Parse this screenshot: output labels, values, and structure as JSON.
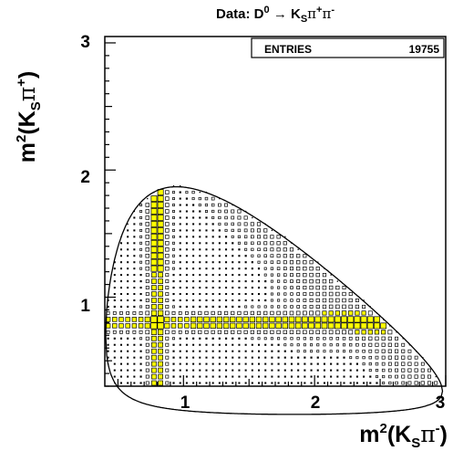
{
  "chart_data": {
    "type": "heatmap",
    "title": "Data: D⁰ → Kₛπ⁺π⁻",
    "title_parts": {
      "prefix": "Data: D",
      "d_sup": "0",
      "arrow": "→",
      "k": "K",
      "k_sub": "S",
      "pi1": "π",
      "pi1_sup": "+",
      "pi2": "π",
      "pi2_sup": "-"
    },
    "xlabel": {
      "m": "m",
      "sup": "2",
      "open": "(K",
      "sub": "S",
      "pi": "π",
      "pi_sup": "-",
      "close": ")"
    },
    "ylabel": {
      "m": "m",
      "sup": "2",
      "open": "(K",
      "sub": "S",
      "pi": "π",
      "pi_sup": "+",
      "close": ")"
    },
    "xlim": [
      0.4,
      3.0
    ],
    "ylim": [
      0.3,
      3.05
    ],
    "xticks": [
      1,
      2,
      3
    ],
    "yticks": [
      1,
      2,
      3
    ],
    "xtick_labels": [
      "1",
      "2",
      "3"
    ],
    "ytick_labels": [
      "1",
      "2",
      "3"
    ],
    "stats_box": {
      "label": "ENTRIES",
      "value": "19755"
    },
    "bin_width": 0.05,
    "boundary": "kinematic Dalitz boundary (solid line)",
    "colors": {
      "box": "#000000",
      "high_density_fill": "#ffff00",
      "frame": "#000000"
    },
    "features": [
      {
        "name": "K*(892)- band",
        "axis": "x",
        "value": 0.8,
        "range": [
          0.75,
          2.85
        ]
      },
      {
        "name": "K*(892)+ band",
        "axis": "y",
        "value": 0.8,
        "range": [
          1.1,
          2.85
        ]
      },
      {
        "name": "rho(770) region",
        "near": "lower-left boundary"
      }
    ]
  }
}
